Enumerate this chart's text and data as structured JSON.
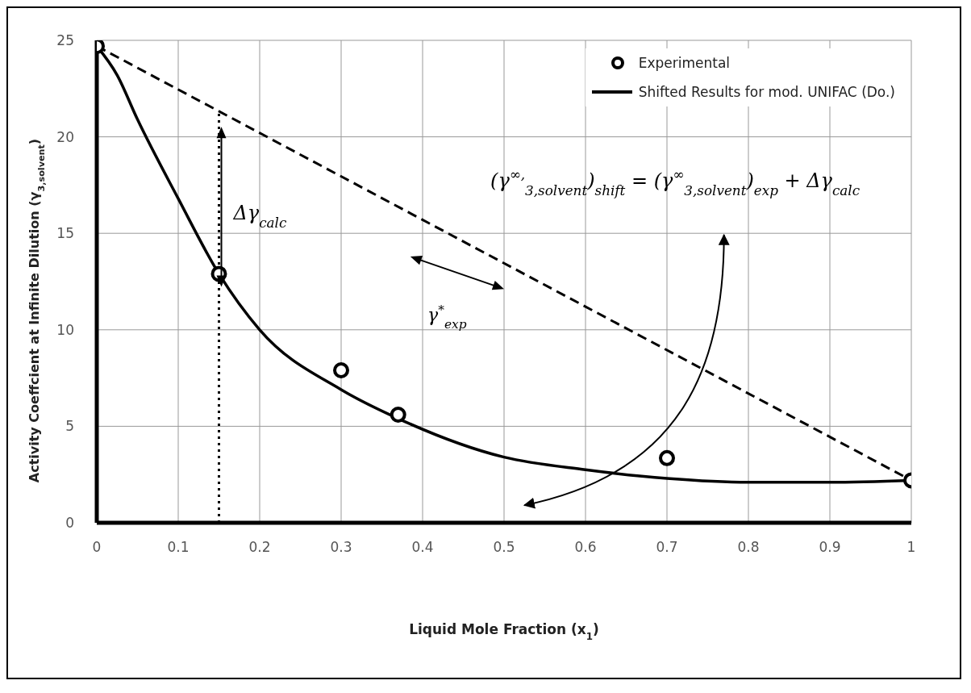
{
  "chart_data": {
    "type": "scatter",
    "xlabel": "Liquid Mole Fraction (x$_{1}$)",
    "ylabel": "Activity Coeffcient at Infinite Dilution (γ$_{3,solvent}$)",
    "xlim": [
      0,
      1
    ],
    "xticks": [
      0,
      0.1,
      0.2,
      0.3,
      0.4,
      0.5,
      0.6,
      0.7,
      0.8,
      0.9,
      1
    ],
    "ylim": [
      0,
      25
    ],
    "yticks": [
      0,
      5,
      10,
      15,
      20,
      25
    ],
    "grid": true,
    "legend": "top right",
    "annotations": [
      {
        "text": "Δγ$_{calc}$",
        "x": 0.15,
        "y": 17
      },
      "γ$^{*}$$_{exp}$",
      "(γ$^{∞,}$$_{3,solvent}$)$_{shift}$ = (γ$^{∞}$$_{3,solvent}$)$_{exp}$ + Δγ$_{calc}$"
    ],
    "series": [
      {
        "name": "Experimental",
        "color": "#000000",
        "marker": "circle",
        "x": [
          0,
          0.15,
          0.3,
          0.37,
          0.7,
          1
        ],
        "values": [
          24.7,
          12.9,
          7.9,
          5.6,
          3.35,
          2.2
        ]
      },
      {
        "name": "Shifted Results for mod. UNIFAC (Do.)",
        "type": "line",
        "color": "#000000",
        "marker": "none",
        "line_style": "solid",
        "x": [
          0,
          0.025,
          0.05,
          0.1,
          0.15,
          0.2,
          0.3,
          0.37,
          0.5,
          0.6,
          0.7,
          0.8,
          0.9,
          1
        ],
        "values": [
          24.7,
          23.2,
          20.9,
          16.8,
          12.9,
          10,
          6.9,
          5.4,
          3.4,
          2.75,
          2.3,
          2.1,
          2.1,
          2.2
        ]
      },
      {
        "type": "line",
        "color": "#000000",
        "marker": "none",
        "line_style": "dashed",
        "x": [
          0,
          1
        ],
        "values": [
          24.7,
          2.2
        ]
      },
      {
        "type": "line",
        "color": "#000000",
        "marker": "none",
        "line_style": "dotted",
        "x": [
          0.15,
          0.15
        ],
        "values": [
          0,
          21.3
        ]
      }
    ]
  }
}
